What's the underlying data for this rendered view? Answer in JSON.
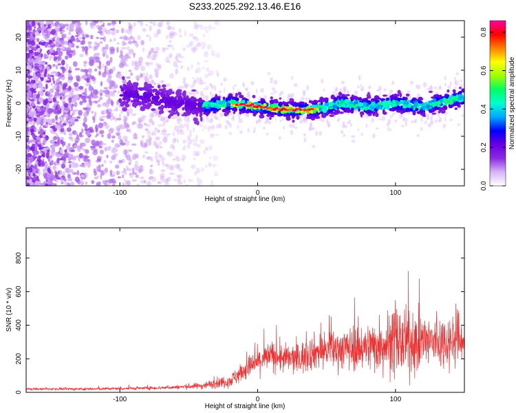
{
  "chart_data": [
    {
      "type": "heatmap",
      "title": "S233.2025.292.13.46.E16",
      "xlabel": "Height of straight line (km)",
      "ylabel": "Frequency (Hz)",
      "xlim": [
        -168,
        150
      ],
      "ylim": [
        -25,
        25
      ],
      "x_ticks": [
        -100,
        0,
        100
      ],
      "y_ticks": [
        -20,
        -10,
        0,
        10,
        20
      ],
      "colorbar": {
        "label": "Normalized spectral amplitude",
        "range": [
          0.0,
          0.86
        ],
        "ticks": [
          0.0,
          0.2,
          0.4,
          0.6,
          0.8
        ],
        "colors": [
          "#ffffff",
          "#d8b4f8",
          "#8a2be2",
          "#6a00e0",
          "#0000ff",
          "#00a8ff",
          "#00ffd0",
          "#00ff60",
          "#a0ff00",
          "#ffff00",
          "#ff8000",
          "#ff0000",
          "#ff00a0"
        ]
      },
      "ridge": {
        "description": "dominant frequency track (Hz) vs height (km)",
        "x": [
          -100,
          -80,
          -60,
          -40,
          -20,
          0,
          20,
          40,
          60,
          80,
          100,
          120,
          140,
          150
        ],
        "y": [
          3,
          2,
          0,
          -1,
          0,
          -1,
          -2,
          -2,
          0,
          -1,
          0,
          -1,
          1,
          2
        ]
      }
    },
    {
      "type": "line",
      "title": "",
      "xlabel": "Height of straight line (km)",
      "ylabel": "SNR (10 * v/v)",
      "xlim": [
        -168,
        150
      ],
      "ylim": [
        0,
        980
      ],
      "x_ticks": [
        -100,
        0,
        100
      ],
      "y_ticks": [
        0,
        200,
        400,
        600,
        800
      ],
      "color": "#f03030",
      "envelope": {
        "description": "approximate mean and spread of the noisy SNR trace",
        "x": [
          -168,
          -120,
          -80,
          -60,
          -40,
          -20,
          -10,
          0,
          10,
          20,
          30,
          40,
          60,
          80,
          90,
          100,
          110,
          120,
          130,
          140,
          150
        ],
        "mean": [
          20,
          20,
          25,
          30,
          40,
          70,
          130,
          180,
          220,
          200,
          200,
          240,
          260,
          270,
          290,
          300,
          290,
          300,
          300,
          310,
          320
        ],
        "spread": [
          8,
          10,
          12,
          15,
          25,
          50,
          80,
          100,
          110,
          110,
          120,
          130,
          150,
          180,
          220,
          260,
          230,
          220,
          200,
          200,
          200
        ]
      }
    }
  ]
}
